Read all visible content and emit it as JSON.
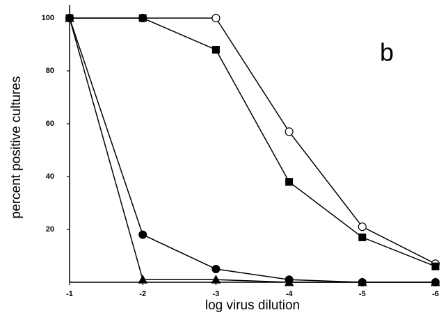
{
  "chart_data": {
    "type": "line",
    "x_label": "log virus dilution",
    "y_label": "percent positive cultures",
    "annotation": "b",
    "x": [
      -1,
      -2,
      -3,
      -4,
      -5,
      -6
    ],
    "xlim": [
      -1,
      -6
    ],
    "xticks": [
      -1,
      -2,
      -3,
      -4,
      -5,
      -6
    ],
    "ylim": [
      0,
      105
    ],
    "yticks": [
      20,
      40,
      60,
      80,
      100
    ],
    "grid": false,
    "series": [
      {
        "color": "#000000",
        "marker": "circle-open",
        "values": [
          100,
          100,
          100,
          57,
          21,
          7
        ]
      },
      {
        "color": "#000000",
        "marker": "square",
        "values": [
          100,
          100,
          88,
          38,
          17,
          6
        ]
      },
      {
        "color": "#000000",
        "marker": "circle",
        "values": [
          100,
          18,
          5,
          1,
          0,
          0
        ]
      },
      {
        "color": "#000000",
        "marker": "triangle",
        "values": [
          100,
          1,
          1,
          0,
          0,
          0
        ]
      }
    ]
  }
}
